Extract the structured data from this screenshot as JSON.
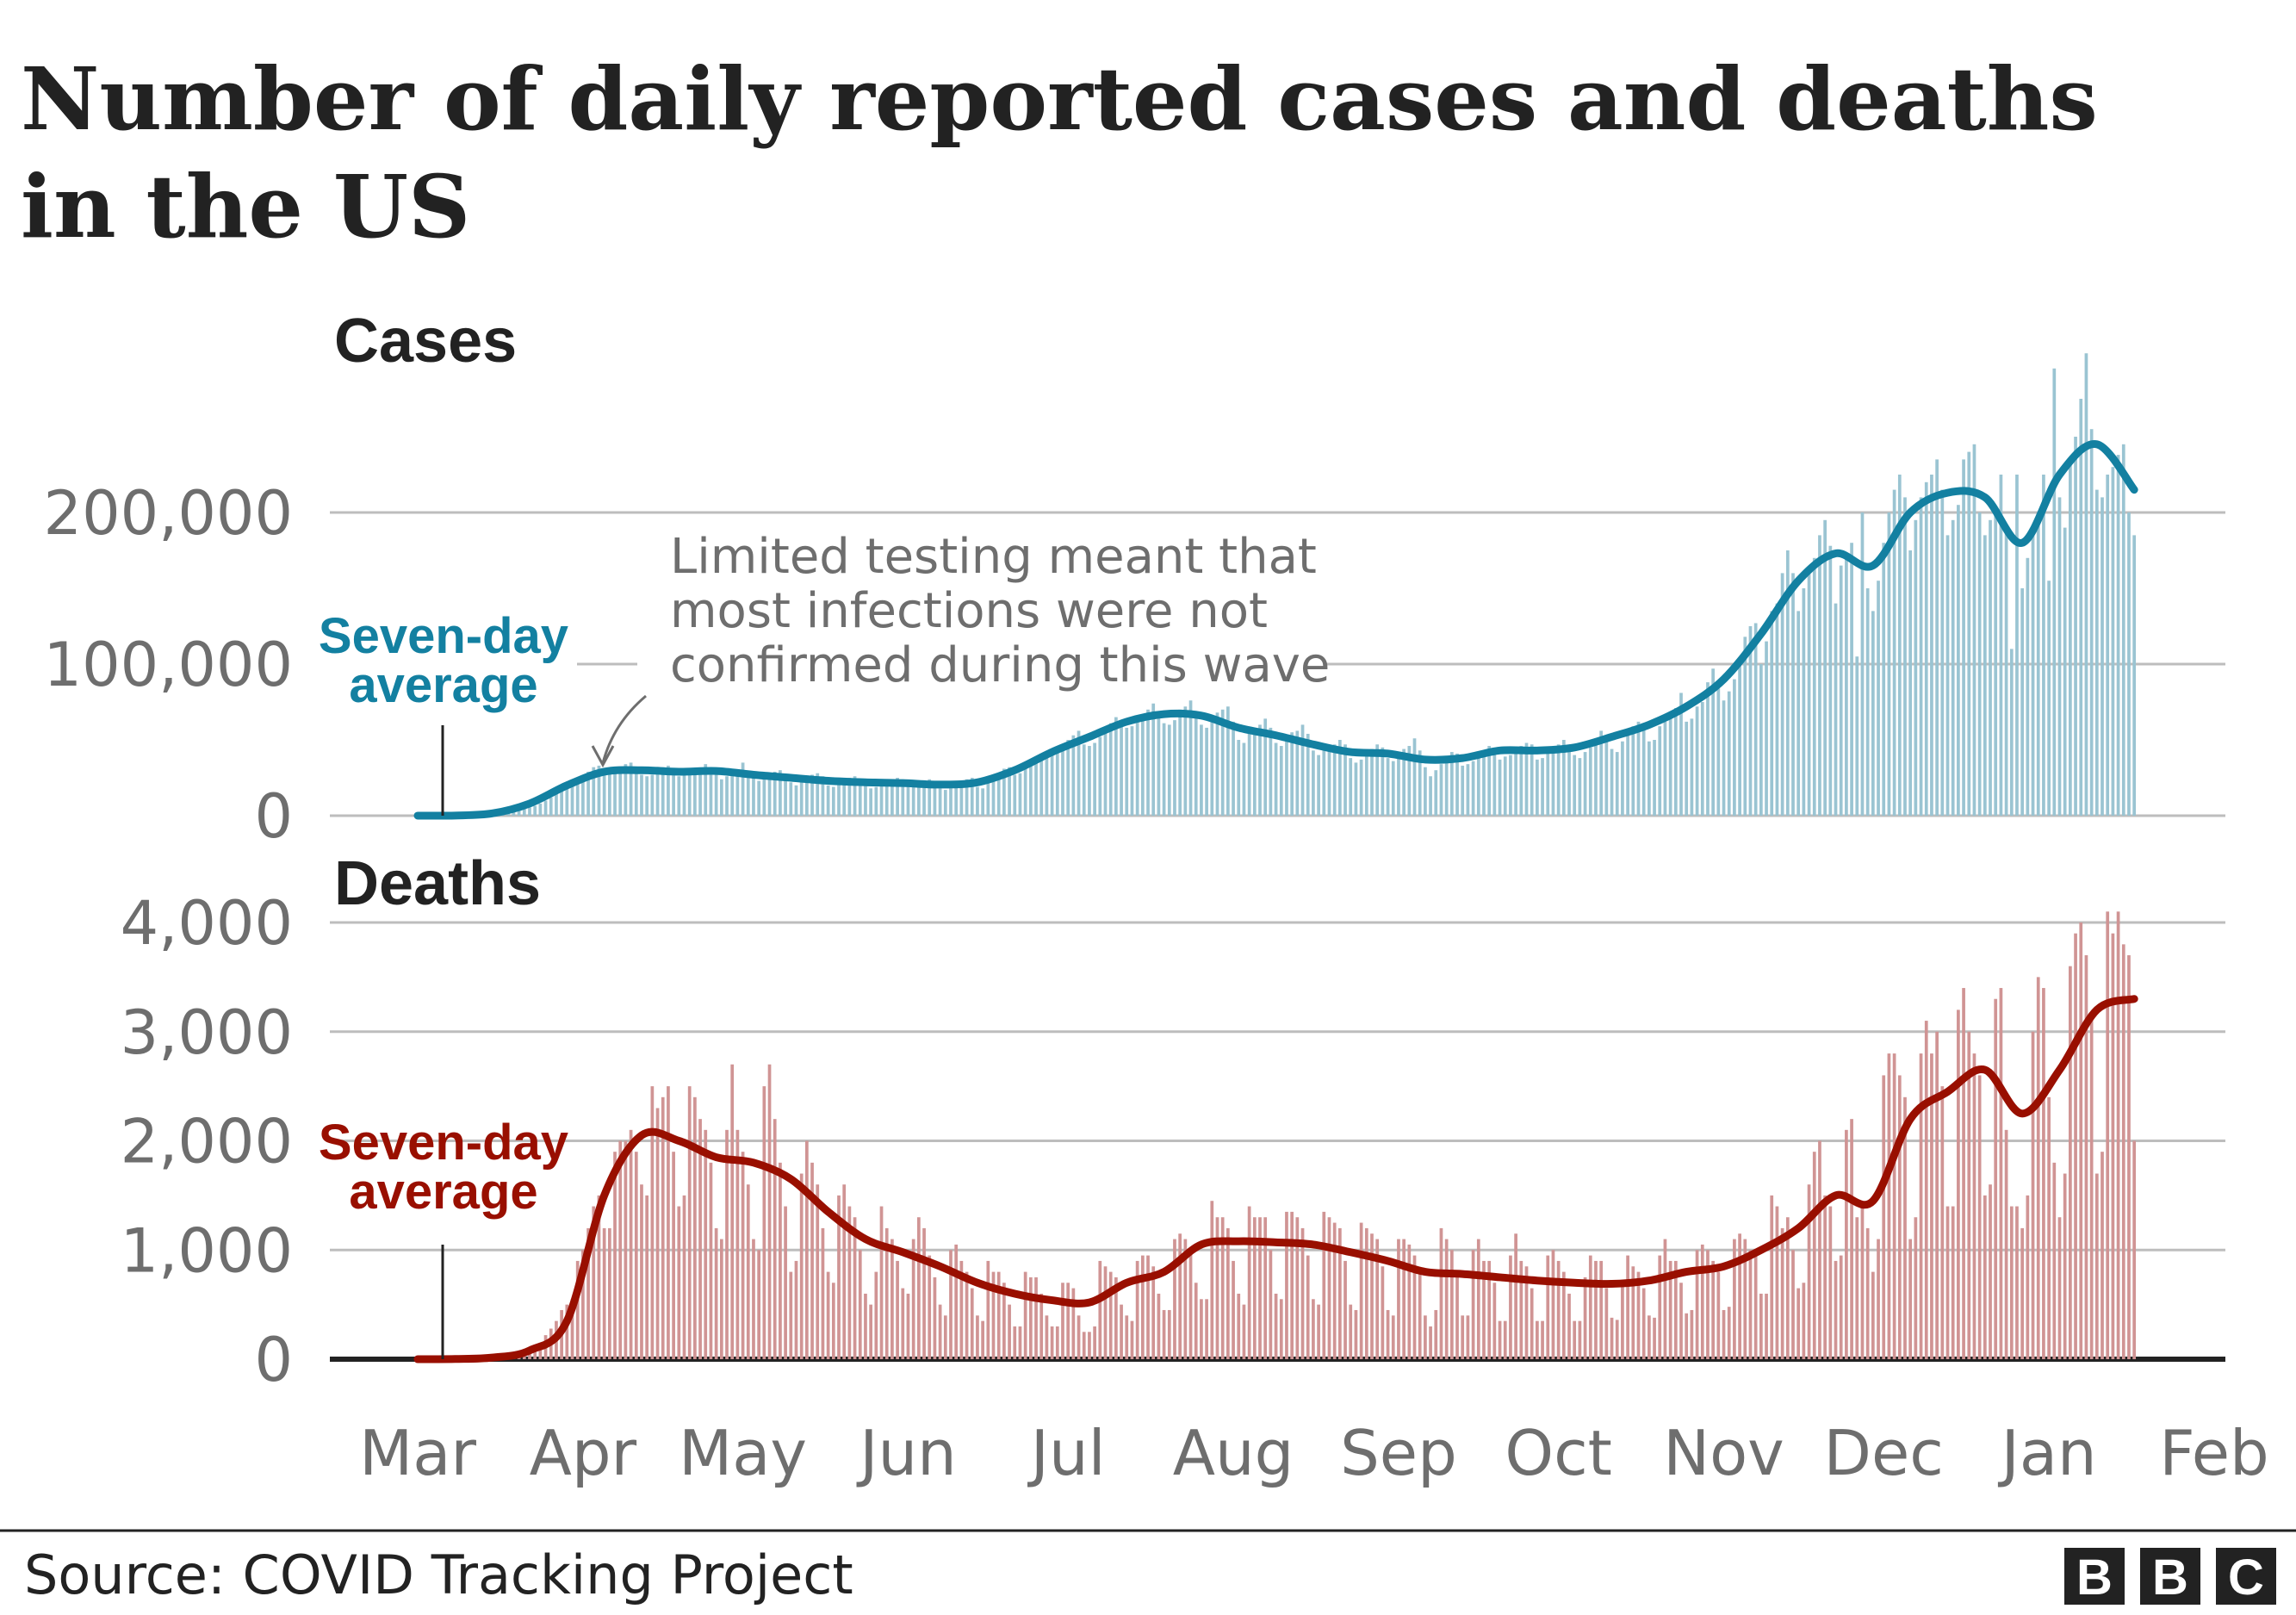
{
  "title_lines": [
    "Number of daily reported cases and deaths",
    "in the US"
  ],
  "source": "Source: COVID Tracking Project",
  "logo": "BBC",
  "chart_data": [
    {
      "type": "bar",
      "panel_title": "Cases",
      "series_types": {
        "daily": "bar",
        "seven_day_average": "line"
      },
      "colors": {
        "bars": "#9ac4d2",
        "line": "#1380a1"
      },
      "ylim": [
        0,
        200000
      ],
      "yticks": [
        0,
        100000,
        200000
      ],
      "ytick_labels": [
        "0",
        "100,000",
        "200,000"
      ],
      "date_range": [
        "2020-03-01",
        "2021-01-17"
      ],
      "xlim": [
        "2020-03-01",
        "2021-02-01"
      ],
      "xtick_labels": [
        "Mar",
        "Apr",
        "May",
        "Jun",
        "Jul",
        "Aug",
        "Sep",
        "Oct",
        "Nov",
        "Dec",
        "Jan",
        "Feb"
      ],
      "grid": true,
      "annotation_label": [
        "Seven-day",
        "average"
      ],
      "note": [
        "Limited testing meant that",
        "most infections were not",
        "confirmed during this wave"
      ],
      "daily": [
        5,
        5,
        8,
        10,
        15,
        20,
        30,
        50,
        60,
        100,
        150,
        250,
        350,
        400,
        600,
        800,
        1100,
        1500,
        2500,
        3500,
        4700,
        5400,
        6500,
        8000,
        10000,
        12000,
        17000,
        19000,
        19000,
        21000,
        24000,
        26000,
        29000,
        32000,
        33000,
        27000,
        28000,
        30000,
        31000,
        34000,
        35000,
        32000,
        27000,
        26000,
        27000,
        29000,
        32000,
        33000,
        31000,
        26000,
        27000,
        27000,
        29000,
        31000,
        34000,
        30000,
        27000,
        24000,
        26000,
        28000,
        30000,
        35000,
        29000,
        25000,
        23000,
        24000,
        26000,
        29000,
        30000,
        27000,
        22000,
        20000,
        22000,
        25000,
        27000,
        28000,
        26000,
        20000,
        19000,
        21000,
        22000,
        25000,
        26000,
        24000,
        20000,
        18000,
        19000,
        21000,
        23000,
        24000,
        25000,
        20000,
        19000,
        20000,
        21000,
        22000,
        24000,
        22000,
        18000,
        17000,
        18000,
        20000,
        22000,
        24000,
        25000,
        19000,
        18000,
        22000,
        24000,
        27000,
        31000,
        32000,
        27000,
        28000,
        34000,
        36000,
        38000,
        41000,
        42000,
        40000,
        42000,
        46000,
        50000,
        53000,
        56000,
        47000,
        46000,
        48000,
        52000,
        56000,
        61000,
        65000,
        60000,
        58000,
        59000,
        62000,
        66000,
        70000,
        74000,
        65000,
        61000,
        60000,
        63000,
        70000,
        72000,
        76000,
        68000,
        60000,
        58000,
        62000,
        68000,
        70000,
        72000,
        62000,
        50000,
        48000,
        54000,
        56000,
        60000,
        64000,
        58000,
        48000,
        46000,
        50000,
        55000,
        56000,
        60000,
        54000,
        43000,
        40000,
        43000,
        46000,
        47000,
        50000,
        47000,
        38000,
        35000,
        37000,
        42000,
        44000,
        47000,
        45000,
        38000,
        36000,
        41000,
        44000,
        46000,
        51000,
        43000,
        32000,
        26000,
        30000,
        34000,
        37000,
        42000,
        41000,
        33000,
        34000,
        36000,
        38000,
        42000,
        46000,
        42000,
        37000,
        39000,
        40000,
        44000,
        46000,
        48000,
        47000,
        37000,
        38000,
        41000,
        45000,
        47000,
        50000,
        45000,
        40000,
        38000,
        42000,
        45000,
        51000,
        56000,
        52000,
        44000,
        42000,
        49000,
        53000,
        59000,
        62000,
        57000,
        49000,
        50000,
        59000,
        62000,
        66000,
        71000,
        81000,
        62000,
        64000,
        72000,
        75000,
        88000,
        97000,
        84000,
        76000,
        82000,
        90000,
        100000,
        118000,
        125000,
        127000,
        100000,
        115000,
        135000,
        140000,
        160000,
        175000,
        160000,
        135000,
        150000,
        160000,
        170000,
        185000,
        195000,
        178000,
        140000,
        165000,
        170000,
        180000,
        105000,
        200000,
        150000,
        135000,
        155000,
        180000,
        200000,
        215000,
        225000,
        210000,
        175000,
        195000,
        210000,
        220000,
        225000,
        235000,
        215000,
        185000,
        195000,
        205000,
        235000,
        240000,
        245000,
        200000,
        185000,
        195000,
        200000,
        225000,
        190000,
        110000,
        225000,
        150000,
        170000,
        185000,
        200000,
        225000,
        155000,
        295000,
        210000,
        190000,
        235000,
        250000,
        275000,
        305000,
        255000,
        215000,
        210000,
        225000,
        230000,
        238000,
        245000,
        200000,
        185000
      ],
      "seven_day_average": {
        "dates": [
          "2020-03-01",
          "2020-03-08",
          "2020-03-15",
          "2020-03-22",
          "2020-03-29",
          "2020-04-05",
          "2020-04-12",
          "2020-04-19",
          "2020-04-26",
          "2020-05-03",
          "2020-05-10",
          "2020-05-17",
          "2020-05-24",
          "2020-05-31",
          "2020-06-07",
          "2020-06-14",
          "2020-06-21",
          "2020-06-28",
          "2020-07-05",
          "2020-07-12",
          "2020-07-19",
          "2020-07-26",
          "2020-08-02",
          "2020-08-09",
          "2020-08-16",
          "2020-08-23",
          "2020-08-30",
          "2020-09-06",
          "2020-09-13",
          "2020-09-20",
          "2020-09-27",
          "2020-10-04",
          "2020-10-11",
          "2020-10-18",
          "2020-10-25",
          "2020-11-01",
          "2020-11-08",
          "2020-11-15",
          "2020-11-22",
          "2020-11-29",
          "2020-12-06",
          "2020-12-13",
          "2020-12-20",
          "2020-12-27",
          "2021-01-03",
          "2021-01-10",
          "2021-01-17"
        ],
        "values": [
          10,
          100,
          1500,
          8000,
          20000,
          29000,
          30000,
          29000,
          29500,
          27000,
          25000,
          23000,
          22000,
          21500,
          20500,
          22000,
          30000,
          42000,
          52000,
          62000,
          67000,
          66000,
          58000,
          53000,
          47000,
          42000,
          41000,
          37000,
          38000,
          43000,
          43000,
          45000,
          52000,
          60000,
          72000,
          90000,
          120000,
          155000,
          173000,
          165000,
          200000,
          213000,
          210000,
          180000,
          225000,
          245000,
          215000
        ]
      }
    },
    {
      "type": "bar",
      "panel_title": "Deaths",
      "series_types": {
        "daily": "bar",
        "seven_day_average": "line"
      },
      "colors": {
        "bars": "#d09494",
        "line": "#990f00"
      },
      "ylim": [
        0,
        4000
      ],
      "yticks": [
        0,
        1000,
        2000,
        3000,
        4000
      ],
      "ytick_labels": [
        "0",
        "1,000",
        "2,000",
        "3,000",
        "4,000"
      ],
      "date_range": [
        "2020-03-01",
        "2021-01-17"
      ],
      "xlim": [
        "2020-03-01",
        "2021-02-01"
      ],
      "grid": true,
      "annotation_label": [
        "Seven-day",
        "average"
      ],
      "daily": [
        0,
        0,
        0,
        1,
        1,
        2,
        2,
        1,
        3,
        2,
        5,
        5,
        8,
        10,
        10,
        15,
        20,
        30,
        40,
        50,
        60,
        60,
        100,
        150,
        220,
        280,
        350,
        450,
        500,
        550,
        900,
        1000,
        1200,
        1400,
        1500,
        1200,
        1200,
        1900,
        2000,
        2000,
        2100,
        1900,
        1600,
        1500,
        2500,
        2300,
        2400,
        2500,
        1900,
        1400,
        1500,
        2500,
        2400,
        2200,
        2100,
        1800,
        1200,
        1100,
        2100,
        2700,
        2100,
        1900,
        1600,
        1100,
        1000,
        2500,
        2700,
        2200,
        1800,
        1400,
        800,
        900,
        1700,
        2000,
        1800,
        1600,
        1200,
        800,
        700,
        1500,
        1600,
        1400,
        1300,
        1000,
        600,
        500,
        800,
        1400,
        1200,
        1100,
        900,
        650,
        600,
        1100,
        1300,
        1200,
        950,
        750,
        500,
        400,
        1000,
        1050,
        900,
        800,
        650,
        400,
        350,
        900,
        800,
        800,
        700,
        500,
        300,
        300,
        800,
        750,
        750,
        600,
        400,
        300,
        300,
        700,
        700,
        650,
        400,
        250,
        250,
        300,
        900,
        850,
        800,
        750,
        500,
        400,
        350,
        900,
        950,
        950,
        850,
        600,
        450,
        450,
        1100,
        1150,
        1100,
        1000,
        700,
        550,
        550,
        1450,
        1300,
        1300,
        1200,
        900,
        600,
        500,
        1400,
        1300,
        1300,
        1300,
        1000,
        600,
        550,
        1350,
        1350,
        1300,
        1200,
        950,
        550,
        500,
        1350,
        1300,
        1250,
        1200,
        900,
        500,
        450,
        1250,
        1200,
        1150,
        1100,
        850,
        450,
        400,
        1100,
        1100,
        1050,
        950,
        800,
        400,
        300,
        450,
        1200,
        1100,
        1000,
        750,
        400,
        400,
        1000,
        1100,
        900,
        900,
        700,
        350,
        350,
        950,
        1150,
        900,
        850,
        650,
        350,
        350,
        950,
        1000,
        900,
        800,
        600,
        350,
        350,
        750,
        950,
        900,
        900,
        650,
        380,
        360,
        720,
        950,
        850,
        800,
        650,
        400,
        380,
        950,
        1100,
        900,
        900,
        700,
        420,
        450,
        1000,
        1050,
        1000,
        900,
        800,
        450,
        480,
        1100,
        1150,
        1100,
        1000,
        950,
        600,
        600,
        1500,
        1400,
        1200,
        1300,
        1000,
        650,
        700,
        1600,
        1900,
        2000,
        1500,
        1400,
        900,
        950,
        2100,
        2200,
        1300,
        1400,
        1200,
        800,
        1100,
        2600,
        2800,
        2800,
        2600,
        2400,
        1100,
        1300,
        2800,
        3100,
        2800,
        3000,
        2500,
        1400,
        1400,
        3200,
        3400,
        3000,
        2800,
        2600,
        1500,
        1600,
        3300,
        3400,
        2100,
        1400,
        1400,
        1200,
        1500,
        3000,
        3500,
        3400,
        2400,
        1800,
        1300,
        1700,
        3600,
        3900,
        4000,
        3700,
        3100,
        1700,
        1900,
        4100,
        3900,
        4100,
        3800,
        3700,
        2000
      ],
      "seven_day_average": {
        "dates": [
          "2020-03-01",
          "2020-03-08",
          "2020-03-15",
          "2020-03-22",
          "2020-03-29",
          "2020-04-05",
          "2020-04-12",
          "2020-04-19",
          "2020-04-26",
          "2020-05-03",
          "2020-05-10",
          "2020-05-17",
          "2020-05-24",
          "2020-05-31",
          "2020-06-07",
          "2020-06-14",
          "2020-06-21",
          "2020-06-28",
          "2020-07-05",
          "2020-07-12",
          "2020-07-19",
          "2020-07-26",
          "2020-08-02",
          "2020-08-09",
          "2020-08-16",
          "2020-08-23",
          "2020-08-30",
          "2020-09-06",
          "2020-09-13",
          "2020-09-20",
          "2020-09-27",
          "2020-10-04",
          "2020-10-11",
          "2020-10-18",
          "2020-10-25",
          "2020-11-01",
          "2020-11-08",
          "2020-11-15",
          "2020-11-22",
          "2020-11-29",
          "2020-12-06",
          "2020-12-13",
          "2020-12-20",
          "2020-12-27",
          "2021-01-03",
          "2021-01-10",
          "2021-01-17"
        ],
        "values": [
          0,
          2,
          15,
          80,
          350,
          1500,
          2050,
          2000,
          1850,
          1800,
          1650,
          1350,
          1100,
          980,
          850,
          700,
          600,
          540,
          520,
          700,
          800,
          1050,
          1080,
          1070,
          1050,
          980,
          900,
          800,
          780,
          750,
          720,
          700,
          690,
          720,
          800,
          850,
          1000,
          1200,
          1500,
          1450,
          2200,
          2450,
          2650,
          2250,
          2650,
          3200,
          3300
        ]
      }
    }
  ]
}
